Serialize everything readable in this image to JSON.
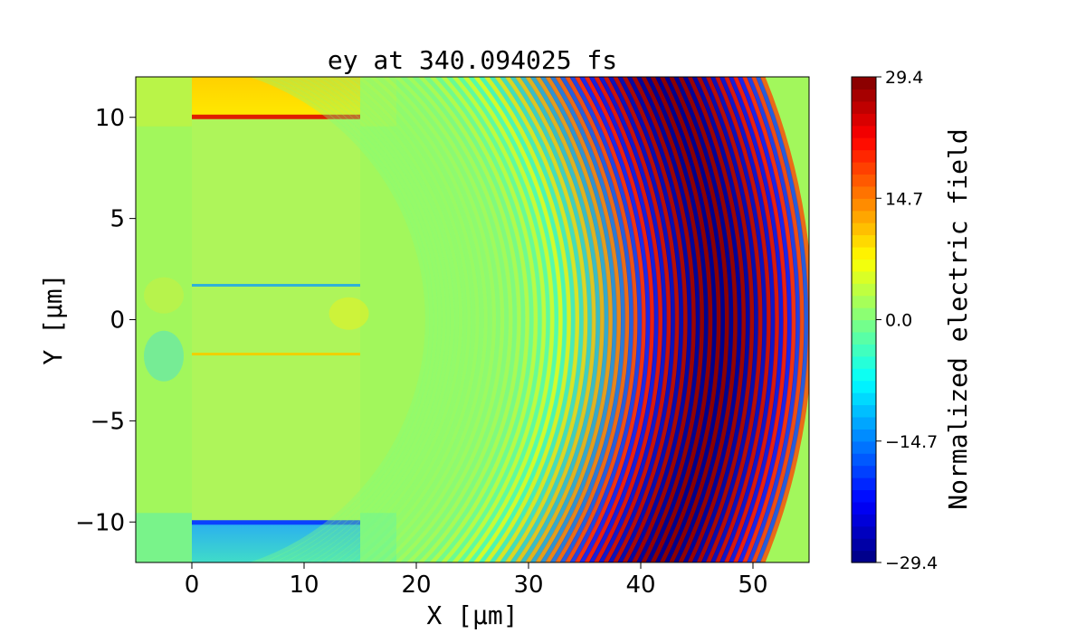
{
  "chart_data": {
    "type": "heatmap",
    "title": "ey at 340.094025 fs",
    "xlabel": "X [μm]",
    "ylabel": "Y [μm]",
    "xlim": [
      -5,
      55
    ],
    "ylim": [
      -12,
      12
    ],
    "x_ticks": [
      0,
      10,
      20,
      30,
      40,
      50
    ],
    "x_tick_labels": [
      "0",
      "10",
      "20",
      "30",
      "40",
      "50"
    ],
    "y_ticks": [
      10,
      5,
      0,
      -5,
      -10
    ],
    "y_tick_labels": [
      "10",
      "5",
      "0",
      "−5",
      "−10"
    ],
    "colorbar": {
      "label": "Normalized electric field",
      "vmin": -29.4,
      "vmax": 29.4,
      "ticks": [
        29.4,
        14.7,
        0.0,
        -14.7,
        -29.4
      ],
      "tick_labels": [
        "29.4",
        "14.7",
        "0.0",
        "−14.7",
        "−29.4"
      ],
      "colormap": "jet",
      "levels": 40
    },
    "grid": false,
    "features": {
      "target_block": {
        "x_range": [
          0,
          15
        ],
        "y_range": [
          -10,
          10
        ]
      },
      "inner_channel_edges_y": [
        1.7,
        -1.7
      ],
      "wave_focus_x": 47,
      "wave_region_x": [
        22,
        55
      ]
    }
  },
  "colors": {
    "jet": [
      "#00007f",
      "#0000ff",
      "#007fff",
      "#00ffff",
      "#7fff7f",
      "#ffff00",
      "#ff7f00",
      "#ff0000",
      "#7f0000"
    ],
    "background_field": "#a2f75c"
  }
}
